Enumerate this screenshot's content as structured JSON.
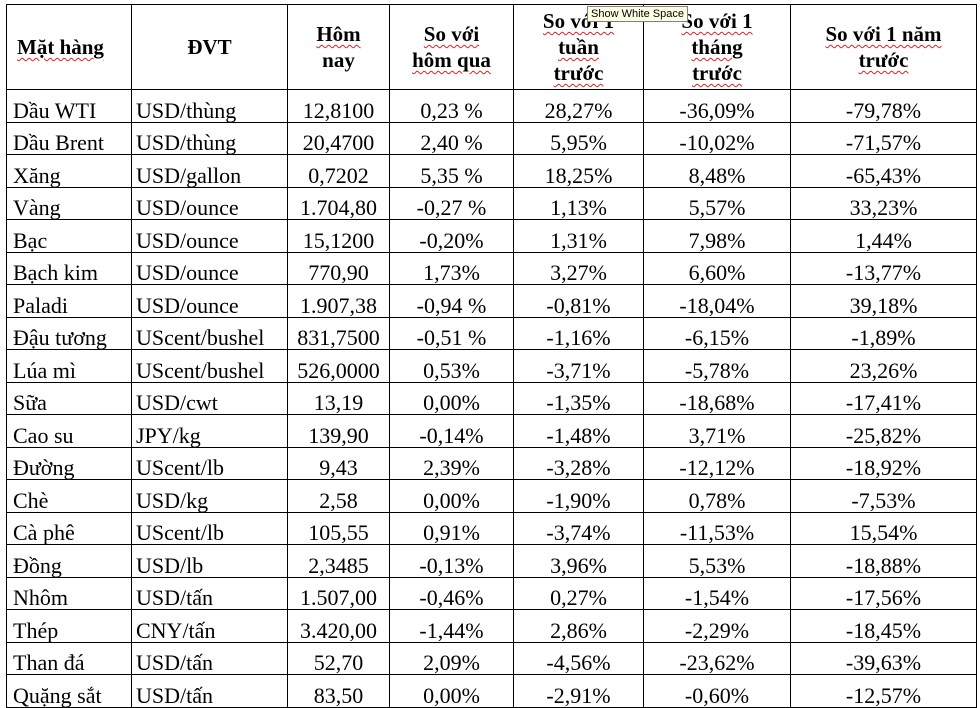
{
  "headers": {
    "item": "Mặt hàng",
    "unit": "ĐVT",
    "today": [
      "Hôm",
      "nay"
    ],
    "vs_yesterday": [
      "So với",
      "hôm qua"
    ],
    "vs_week": [
      "So với 1",
      "tuần",
      "trước"
    ],
    "vs_month": [
      "So với 1",
      "tháng",
      "trước"
    ],
    "vs_year": [
      "So với 1 năm",
      "trước"
    ]
  },
  "tooltip": "Show White Space",
  "rows": [
    {
      "item": "Dầu WTI",
      "unit": "USD/thùng",
      "today": "12,8100",
      "d1": "0,23 %",
      "w1": "28,27%",
      "m1": "-36,09%",
      "y1": "-79,78%"
    },
    {
      "item": "Dầu Brent",
      "unit": "USD/thùng",
      "today": "20,4700",
      "d1": "2,40 %",
      "w1": "5,95%",
      "m1": "-10,02%",
      "y1": "-71,57%"
    },
    {
      "item": "Xăng",
      "unit": "USD/gallon",
      "today": "0,7202",
      "d1": "5,35 %",
      "w1": "18,25%",
      "m1": "8,48%",
      "y1": "-65,43%"
    },
    {
      "item": "Vàng",
      "unit": "USD/ounce",
      "today": "1.704,80",
      "d1": "-0,27 %",
      "w1": "1,13%",
      "m1": "5,57%",
      "y1": "33,23%"
    },
    {
      "item": "Bạc",
      "unit": "USD/ounce",
      "today": "15,1200",
      "d1": "-0,20%",
      "w1": "1,31%",
      "m1": "7,98%",
      "y1": "1,44%"
    },
    {
      "item": "Bạch kim",
      "unit": "USD/ounce",
      "today": "770,90",
      "d1": "1,73%",
      "w1": "3,27%",
      "m1": "6,60%",
      "y1": "-13,77%"
    },
    {
      "item": "Paladi",
      "unit": "USD/ounce",
      "today": "1.907,38",
      "d1": "-0,94 %",
      "w1": "-0,81%",
      "m1": "-18,04%",
      "y1": "39,18%"
    },
    {
      "item": "Đậu tương",
      "unit": "UScent/bushel",
      "today": "831,7500",
      "d1": "-0,51 %",
      "w1": "-1,16%",
      "m1": "-6,15%",
      "y1": "-1,89%"
    },
    {
      "item": "Lúa mì",
      "unit": "UScent/bushel",
      "today": "526,0000",
      "d1": "0,53%",
      "w1": "-3,71%",
      "m1": "-5,78%",
      "y1": "23,26%"
    },
    {
      "item": "Sữa",
      "unit": "USD/cwt",
      "today": "13,19",
      "d1": "0,00%",
      "w1": "-1,35%",
      "m1": "-18,68%",
      "y1": "-17,41%"
    },
    {
      "item": "Cao su",
      "unit": "JPY/kg",
      "today": "139,90",
      "d1": "-0,14%",
      "w1": "-1,48%",
      "m1": "3,71%",
      "y1": "-25,82%"
    },
    {
      "item": "Đường",
      "unit": "UScent/lb",
      "today": "9,43",
      "d1": "2,39%",
      "w1": "-3,28%",
      "m1": "-12,12%",
      "y1": "-18,92%"
    },
    {
      "item": "Chè",
      "unit": "USD/kg",
      "today": "2,58",
      "d1": "0,00%",
      "w1": "-1,90%",
      "m1": "0,78%",
      "y1": "-7,53%"
    },
    {
      "item": "Cà phê",
      "unit": "UScent/lb",
      "today": "105,55",
      "d1": "0,91%",
      "w1": "-3,74%",
      "m1": "-11,53%",
      "y1": "15,54%"
    },
    {
      "item": "Đồng",
      "unit": "USD/lb",
      "today": "2,3485",
      "d1": "-0,13%",
      "w1": "3,96%",
      "m1": "5,53%",
      "y1": "-18,88%"
    },
    {
      "item": "Nhôm",
      "unit": "USD/tấn",
      "today": "1.507,00",
      "d1": "-0,46%",
      "w1": "0,27%",
      "m1": "-1,54%",
      "y1": "-17,56%"
    },
    {
      "item": "Thép",
      "unit": "CNY/tấn",
      "today": "3.420,00",
      "d1": "-1,44%",
      "w1": "2,86%",
      "m1": "-2,29%",
      "y1": "-18,45%"
    },
    {
      "item": "Than đá",
      "unit": "USD/tấn",
      "today": "52,70",
      "d1": "2,09%",
      "w1": "-4,56%",
      "m1": "-23,62%",
      "y1": "-39,63%"
    },
    {
      "item": "Quặng sắt",
      "unit": "USD/tấn",
      "today": "83,50",
      "d1": "0,00%",
      "w1": "-2,91%",
      "m1": "-0,60%",
      "y1": "-12,57%"
    }
  ]
}
